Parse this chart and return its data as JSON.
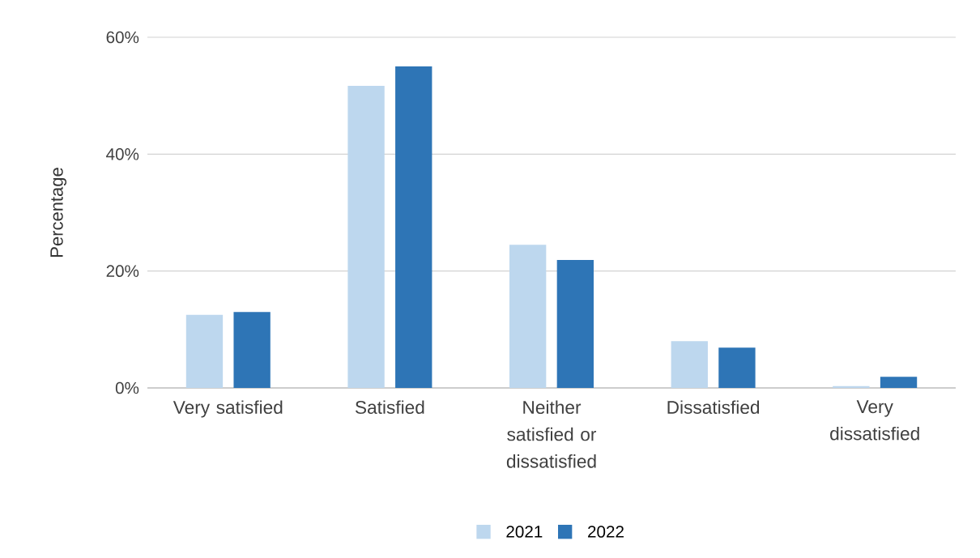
{
  "chart_data": {
    "type": "bar",
    "ylabel": "Percentage",
    "categories": [
      "Very satisfied",
      "Satisfied",
      "Neither satisfied or dissatisfied",
      "Dissatisfied",
      "Very dissatisfied"
    ],
    "series": [
      {
        "name": "2021",
        "color": "#bdd7ee",
        "values": [
          12.5,
          51.7,
          24.5,
          8.0,
          0.3
        ]
      },
      {
        "name": "2022",
        "color": "#2e75b6",
        "values": [
          13.0,
          55.0,
          21.9,
          6.9,
          1.9
        ]
      }
    ],
    "ylim": [
      0,
      60
    ],
    "yticks": [
      {
        "value": 0,
        "label": "0%"
      },
      {
        "value": 20,
        "label": "20%"
      },
      {
        "value": 40,
        "label": "40%"
      },
      {
        "value": 60,
        "label": "60%"
      }
    ],
    "grid": "y",
    "legend": "bottom"
  }
}
